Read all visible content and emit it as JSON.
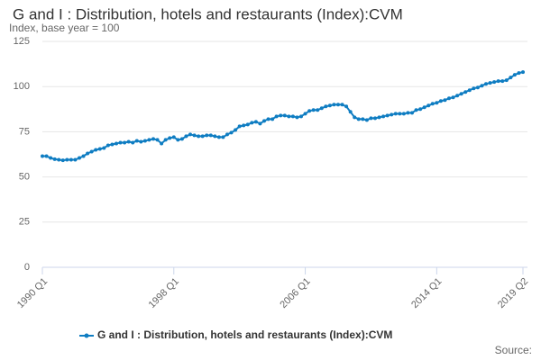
{
  "chart_data": {
    "type": "line",
    "title": "G and I : Distribution, hotels and restaurants (Index):CVM",
    "subtitle": "Index, base year = 100",
    "source": "Source:",
    "categories": [
      "1990 Q1",
      null,
      null,
      null,
      null,
      null,
      null,
      null,
      null,
      null,
      null,
      null,
      null,
      null,
      null,
      null,
      null,
      null,
      null,
      null,
      null,
      null,
      null,
      null,
      null,
      null,
      null,
      null,
      null,
      null,
      null,
      null,
      "1998 Q1",
      null,
      null,
      null,
      null,
      null,
      null,
      null,
      null,
      null,
      null,
      null,
      null,
      null,
      null,
      null,
      null,
      null,
      null,
      null,
      null,
      null,
      null,
      null,
      null,
      null,
      null,
      null,
      null,
      null,
      null,
      null,
      "2006 Q1",
      null,
      null,
      null,
      null,
      null,
      null,
      null,
      null,
      null,
      null,
      null,
      null,
      null,
      null,
      null,
      null,
      null,
      null,
      null,
      null,
      null,
      null,
      null,
      null,
      null,
      null,
      null,
      null,
      null,
      null,
      null,
      "2014 Q1",
      null,
      null,
      null,
      null,
      null,
      null,
      null,
      null,
      null,
      null,
      null,
      null,
      null,
      null,
      null,
      null,
      null,
      null,
      null,
      null,
      "2019 Q2"
    ],
    "series": [
      {
        "name": "G and I : Distribution, hotels and restaurants (Index):CVM",
        "color": "#0f7dc2",
        "values": [
          61.5,
          61.5,
          60.5,
          59.8,
          59.5,
          59.2,
          59.5,
          59.5,
          59.5,
          60.5,
          61.5,
          63,
          64,
          65,
          65.5,
          66,
          67.5,
          68,
          68.5,
          69,
          69,
          69.5,
          69,
          70,
          69.5,
          70,
          70.5,
          71,
          70.5,
          68.5,
          70.5,
          71.5,
          72,
          70.5,
          71,
          72.5,
          73.5,
          73,
          72.5,
          72.5,
          73,
          73,
          72.5,
          72,
          72,
          73.5,
          74.5,
          76,
          78,
          78.5,
          79,
          80,
          80.5,
          79.5,
          81,
          82,
          82,
          83.5,
          84,
          84,
          83.5,
          83.5,
          83,
          83.5,
          85,
          86.5,
          87,
          87,
          88,
          89,
          89.5,
          90,
          90,
          90,
          89,
          86,
          83,
          82,
          82,
          81.5,
          82.5,
          82.5,
          83,
          83.5,
          84,
          84.5,
          85,
          85,
          85,
          85.5,
          85.5,
          87,
          87.5,
          88.5,
          89.5,
          90.5,
          91,
          92,
          92.5,
          93.5,
          94,
          95,
          96,
          97,
          98,
          99,
          99.5,
          100.5,
          101.5,
          102,
          102.5,
          103,
          103,
          103.5,
          105,
          106.5,
          107.5,
          108
        ]
      }
    ],
    "ylim": [
      0,
      125
    ],
    "yticks": [
      0,
      25,
      50,
      75,
      100,
      125
    ],
    "grid": true
  }
}
